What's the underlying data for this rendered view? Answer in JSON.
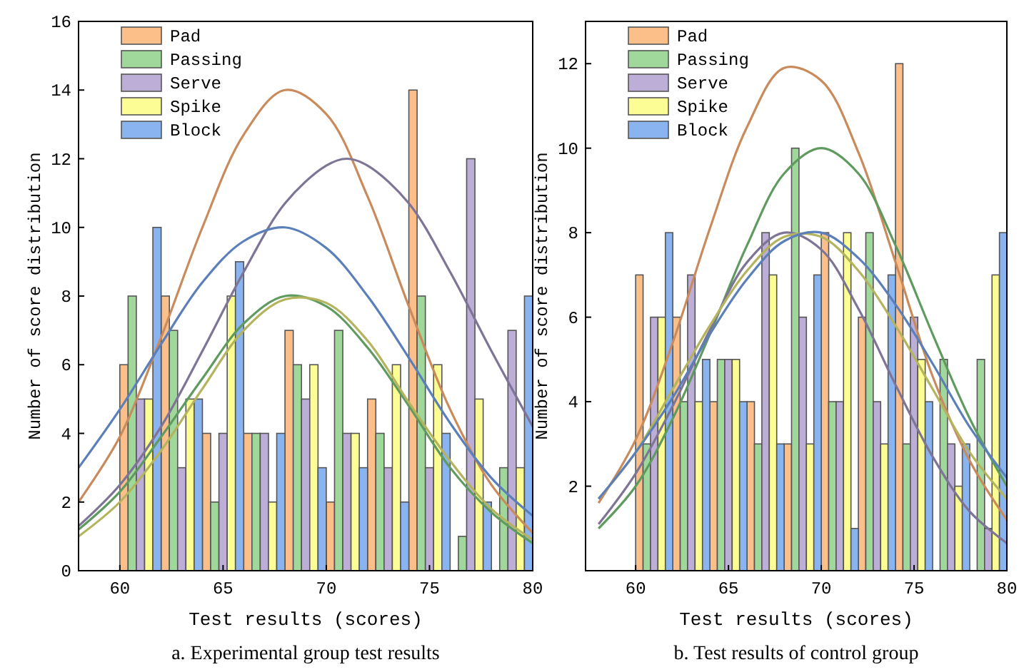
{
  "chart_data": [
    {
      "type": "bar",
      "title": "a. Experimental group test results",
      "xlabel": "Test results (scores)",
      "ylabel": "Number of score distribution",
      "xlim": [
        58,
        80
      ],
      "xticks": [
        60,
        65,
        70,
        75,
        80
      ],
      "ylim": [
        0,
        16
      ],
      "yticks": [
        0,
        2,
        4,
        6,
        8,
        10,
        12,
        14,
        16
      ],
      "legend": "top left",
      "series": [
        {
          "name": "Pad",
          "color": "#fdbf8a",
          "x": [
            60.2,
            62.2,
            64.2,
            66.2,
            68.2,
            70.2,
            72.2,
            74.2,
            76.2,
            78.2
          ],
          "values": [
            6,
            8,
            4,
            4,
            7,
            2,
            5,
            14,
            0,
            0
          ]
        },
        {
          "name": "Passing",
          "color": "#9fd89a",
          "x": [
            60.6,
            62.6,
            64.6,
            66.6,
            68.6,
            70.6,
            72.6,
            74.6,
            76.6,
            78.6
          ],
          "values": [
            8,
            7,
            2,
            4,
            6,
            7,
            4,
            8,
            1,
            3
          ]
        },
        {
          "name": "Serve",
          "color": "#bcaed6",
          "x": [
            61.0,
            63.0,
            65.0,
            67.0,
            69.0,
            71.0,
            73.0,
            75.0,
            77.0,
            79.0
          ],
          "values": [
            5,
            3,
            4,
            4,
            5,
            4,
            3,
            3,
            12,
            7
          ]
        },
        {
          "name": "Spike",
          "color": "#fdfd96",
          "x": [
            61.4,
            63.4,
            65.4,
            67.4,
            69.4,
            71.4,
            73.4,
            75.4,
            77.4,
            79.4
          ],
          "values": [
            5,
            5,
            8,
            2,
            6,
            4,
            6,
            6,
            5,
            3
          ]
        },
        {
          "name": "Block",
          "color": "#8ab4f0",
          "x": [
            61.8,
            63.8,
            65.8,
            67.8,
            69.8,
            71.8,
            73.8,
            75.8,
            77.8,
            79.8
          ],
          "values": [
            10,
            5,
            9,
            4,
            3,
            3,
            2,
            4,
            2,
            8
          ]
        },
        {
          "type": "line",
          "color": "#c98a5c",
          "x": [
            58,
            60,
            62,
            64,
            66,
            68,
            70,
            72,
            74,
            76,
            78,
            80
          ],
          "values": [
            2.0,
            3.9,
            6.8,
            10.0,
            12.7,
            14.0,
            13.3,
            10.9,
            7.7,
            4.7,
            2.5,
            1.1
          ]
        },
        {
          "type": "line",
          "color": "#5f9a5f",
          "x": [
            58,
            60,
            62,
            64,
            66,
            68,
            70,
            72,
            74,
            76,
            78,
            80
          ],
          "values": [
            1.2,
            2.3,
            3.9,
            5.6,
            7.2,
            8.0,
            7.7,
            6.5,
            4.8,
            3.0,
            1.7,
            0.8
          ]
        },
        {
          "type": "line",
          "color": "#7e7496",
          "x": [
            58,
            60,
            62,
            64,
            66,
            68,
            70,
            71,
            72,
            74,
            76,
            78,
            80
          ],
          "values": [
            1.3,
            2.5,
            4.2,
            6.4,
            8.7,
            10.7,
            11.8,
            12.0,
            11.8,
            10.7,
            8.7,
            6.4,
            4.2
          ]
        },
        {
          "type": "line",
          "color": "#b4b45e",
          "x": [
            58,
            60,
            62,
            64,
            66,
            68,
            70,
            72,
            74,
            76,
            78,
            80
          ],
          "values": [
            1.0,
            2.0,
            3.5,
            5.3,
            7.0,
            7.9,
            7.8,
            6.7,
            4.9,
            3.2,
            1.8,
            0.9
          ]
        },
        {
          "type": "line",
          "color": "#5b7fb8",
          "x": [
            58,
            60,
            62,
            64,
            66,
            68,
            70,
            72,
            74,
            76,
            78,
            80
          ],
          "values": [
            3.0,
            4.7,
            6.6,
            8.4,
            9.6,
            10.0,
            9.4,
            8.0,
            6.2,
            4.3,
            2.7,
            1.6
          ]
        }
      ]
    },
    {
      "type": "bar",
      "title": "b. Test results of control group",
      "xlabel": "Test results (scores)",
      "ylabel": "Number of score distribution",
      "xlim": [
        57.3,
        80
      ],
      "xticks": [
        60,
        65,
        70,
        75,
        80
      ],
      "ylim": [
        0,
        13
      ],
      "yticks": [
        2,
        4,
        6,
        8,
        10,
        12
      ],
      "legend": "top left",
      "series": [
        {
          "name": "Pad",
          "color": "#fdbf8a",
          "x": [
            60.2,
            62.2,
            64.2,
            66.2,
            68.2,
            70.2,
            72.2,
            74.2,
            76.2,
            78.2
          ],
          "values": [
            7,
            6,
            4,
            4,
            3,
            8,
            6,
            12,
            0,
            0
          ]
        },
        {
          "name": "Passing",
          "color": "#9fd89a",
          "x": [
            60.6,
            62.6,
            64.6,
            66.6,
            68.6,
            70.6,
            72.6,
            74.6,
            76.6,
            78.6
          ],
          "values": [
            3,
            4,
            5,
            3,
            10,
            4,
            8,
            3,
            5,
            5
          ]
        },
        {
          "name": "Serve",
          "color": "#bcaed6",
          "x": [
            61.0,
            63.0,
            65.0,
            67.0,
            69.0,
            71.0,
            73.0,
            75.0,
            77.0,
            79.0
          ],
          "values": [
            6,
            7,
            5,
            8,
            6,
            4,
            4,
            6,
            3,
            1
          ]
        },
        {
          "name": "Spike",
          "color": "#fdfd96",
          "x": [
            61.4,
            63.4,
            65.4,
            67.4,
            69.4,
            71.4,
            73.4,
            75.4,
            77.4,
            79.4
          ],
          "values": [
            6,
            4,
            5,
            7,
            3,
            8,
            3,
            5,
            2,
            7
          ]
        },
        {
          "name": "Block",
          "color": "#8ab4f0",
          "x": [
            61.8,
            63.8,
            65.8,
            67.8,
            69.8,
            71.8,
            73.8,
            75.8,
            77.8,
            79.8
          ],
          "values": [
            8,
            5,
            4,
            3,
            7,
            1,
            7,
            4,
            3,
            8
          ]
        },
        {
          "type": "line",
          "color": "#c98a5c",
          "x": [
            58,
            60,
            62,
            64,
            66,
            68,
            70,
            72,
            74,
            76,
            78,
            80
          ],
          "values": [
            1.6,
            3.1,
            5.4,
            8.1,
            10.5,
            11.9,
            11.6,
            9.9,
            7.3,
            4.6,
            2.6,
            1.2
          ]
        },
        {
          "type": "line",
          "color": "#5f9a5f",
          "x": [
            58,
            60,
            62,
            64,
            66,
            68,
            70,
            72,
            74,
            76,
            78,
            80
          ],
          "values": [
            1.0,
            2.0,
            3.6,
            5.6,
            7.7,
            9.4,
            10.0,
            9.4,
            7.7,
            5.6,
            3.6,
            2.0
          ]
        },
        {
          "type": "line",
          "color": "#7e7496",
          "x": [
            58,
            60,
            62,
            64,
            66,
            68,
            70,
            72,
            74,
            76,
            78,
            80
          ],
          "values": [
            1.1,
            2.3,
            3.9,
            5.7,
            7.3,
            8.0,
            7.6,
            6.2,
            4.4,
            2.7,
            1.4,
            0.65
          ]
        },
        {
          "type": "line",
          "color": "#b4b45e",
          "x": [
            58,
            60,
            62,
            64,
            66,
            68,
            70,
            72,
            74,
            76,
            78,
            80
          ],
          "values": [
            1.7,
            2.8,
            4.3,
            5.8,
            7.1,
            7.9,
            7.9,
            7.1,
            5.8,
            4.3,
            2.8,
            1.7
          ]
        },
        {
          "type": "line",
          "color": "#5b7fb8",
          "x": [
            58,
            60,
            62,
            64,
            66,
            68,
            70,
            72,
            74,
            76,
            78,
            80
          ],
          "values": [
            1.7,
            2.8,
            4.1,
            5.6,
            6.9,
            7.8,
            8.0,
            7.4,
            6.3,
            4.9,
            3.4,
            2.2
          ]
        }
      ]
    }
  ]
}
